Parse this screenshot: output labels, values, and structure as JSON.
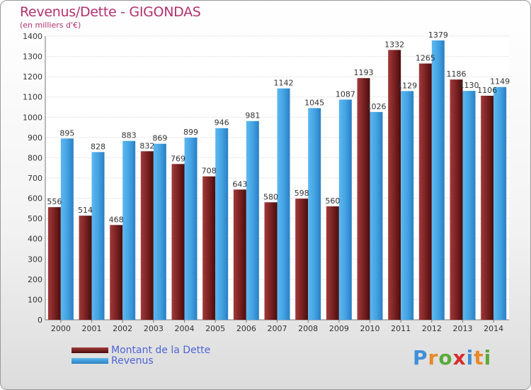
{
  "title": "Revenus/Dette - GIGONDAS",
  "subtitle": "(en milliers d'€)",
  "brand": "Proxiti",
  "colors": {
    "dette": "#6b1a1a",
    "revenus": "#3d9de0",
    "title": "#b2306e",
    "legend_text": "#4c64d6"
  },
  "chart_data": {
    "type": "bar",
    "title": "Revenus/Dette - GIGONDAS",
    "ylabel": "(en milliers d'€)",
    "ylim": [
      0,
      1400
    ],
    "yticks": [
      0,
      100,
      200,
      300,
      400,
      500,
      600,
      700,
      800,
      900,
      1000,
      1100,
      1200,
      1300,
      1400
    ],
    "grid": true,
    "legend_position": "bottom-left",
    "categories": [
      "2000",
      "2001",
      "2002",
      "2003",
      "2004",
      "2005",
      "2006",
      "2007",
      "2008",
      "2009",
      "2010",
      "2011",
      "2012",
      "2013",
      "2014"
    ],
    "series": [
      {
        "name": "Montant de la Dette",
        "values": [
          556,
          514,
          468,
          832,
          769,
          708,
          643,
          580,
          598,
          560,
          1193,
          1332,
          1265,
          1186,
          1106
        ]
      },
      {
        "name": "Revenus",
        "values": [
          895,
          828,
          883,
          869,
          899,
          946,
          981,
          1142,
          1045,
          1087,
          1026,
          1129,
          1379,
          1130,
          1149
        ]
      }
    ]
  }
}
